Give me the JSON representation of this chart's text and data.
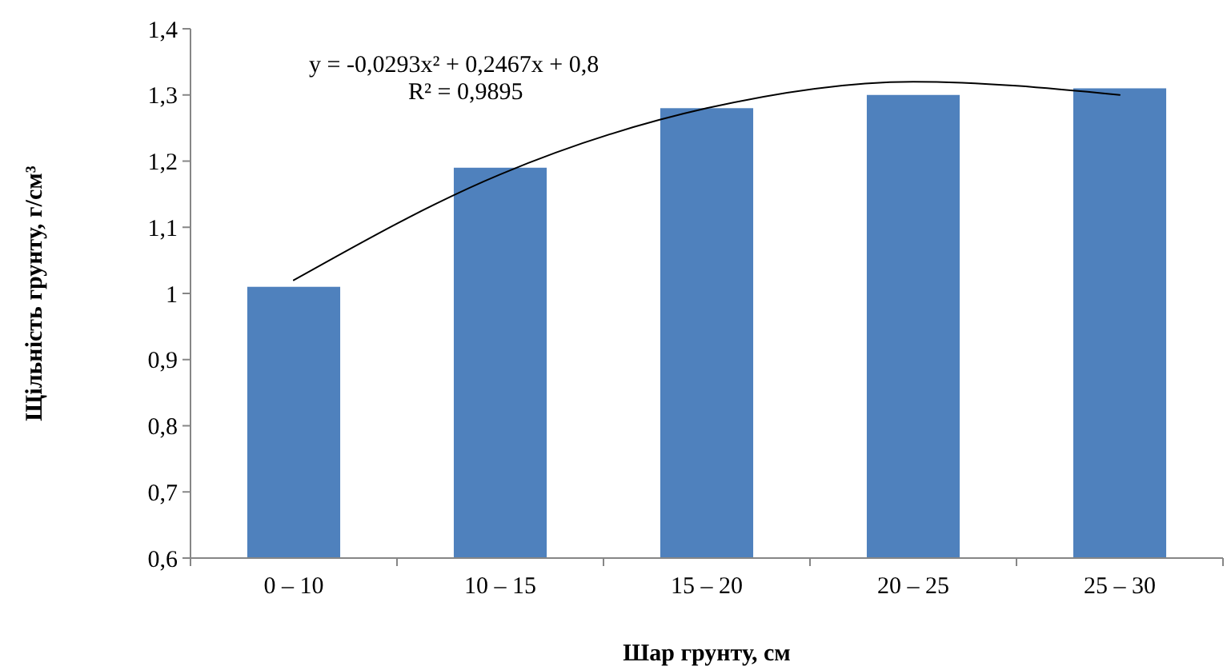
{
  "chart_data": {
    "type": "bar",
    "xlabel": "Шар грунту, см",
    "ylabel": "Щільність грунту, г/см³",
    "categories": [
      "0 – 10",
      "10 – 15",
      "15 – 20",
      "20 – 25",
      "25 – 30"
    ],
    "series": [
      {
        "color": "#4f81bd",
        "values": [
          1.01,
          1.19,
          1.28,
          1.3,
          1.31
        ]
      },
      {
        "type": "line",
        "color": "#000000",
        "values": [
          1.02,
          1.18,
          1.28,
          1.32,
          1.3
        ],
        "marker": "none"
      }
    ],
    "ylim": [
      0.6,
      1.4
    ],
    "yticks": [
      {
        "value": 0.6,
        "label": "0,6"
      },
      {
        "value": 0.7,
        "label": "0,7"
      },
      {
        "value": 0.8,
        "label": "0,8"
      },
      {
        "value": 0.9,
        "label": "0,9"
      },
      1,
      {
        "value": 1.1,
        "label": "1,1"
      },
      {
        "value": 1.2,
        "label": "1,2"
      },
      {
        "value": 1.3,
        "label": "1,3"
      },
      {
        "value": 1.4,
        "label": "1,4"
      }
    ],
    "grid": false,
    "annotations": [
      "y = -0,0293x² + 0,2467x + 0,8",
      "R² = 0,9895"
    ]
  }
}
